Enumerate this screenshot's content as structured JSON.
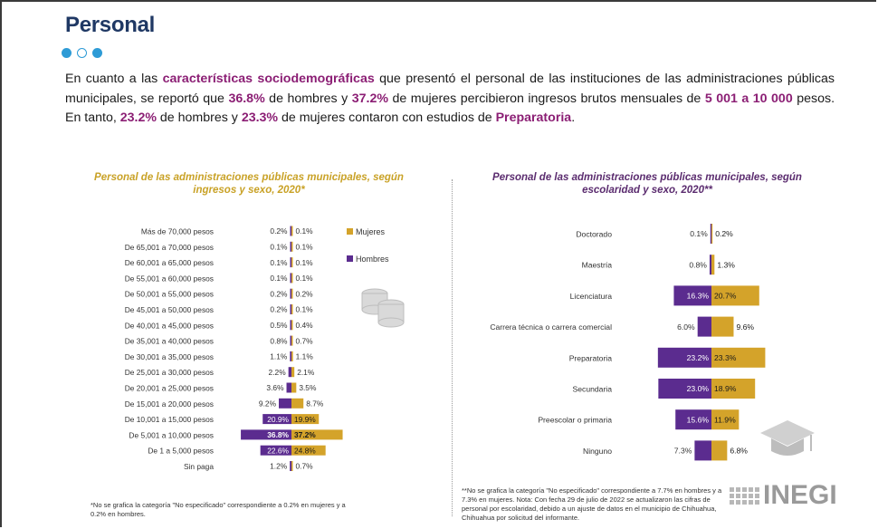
{
  "page": {
    "title": "Personal",
    "intro": [
      {
        "t": "En cuanto a las ",
        "h": false
      },
      {
        "t": "características sociodemográficas",
        "h": true
      },
      {
        "t": " que presentó el personal de las instituciones de las administraciones públicas municipales, se reportó que ",
        "h": false
      },
      {
        "t": "36.8%",
        "h": true
      },
      {
        "t": " de hombres y ",
        "h": false
      },
      {
        "t": "37.2%",
        "h": true
      },
      {
        "t": " de mujeres percibieron ingresos brutos mensuales de ",
        "h": false
      },
      {
        "t": "5 001 a 10 000",
        "h": true
      },
      {
        "t": " pesos. En tanto, ",
        "h": false
      },
      {
        "t": "23.2%",
        "h": true
      },
      {
        "t": " de hombres y ",
        "h": false
      },
      {
        "t": "23.3%",
        "h": true
      },
      {
        "t": " de mujeres contaron con estudios de ",
        "h": false
      },
      {
        "t": "Preparatoria",
        "h": true
      },
      {
        "t": ".",
        "h": false
      }
    ],
    "footnote_left": "*No se grafica la categoría \"No especificado\" correspondiente a 0.2% en mujeres y a 0.2% en hombres.",
    "footnote_right": "**No se grafica la categoría \"No especificado\" correspondiente a 7.7% en hombres y a 7.3% en mujeres. Nota: Con fecha 29 de julio de 2022 se actualizaron las cifras de personal por escolaridad, debido a un ajuste de datos en el municipio de Chihuahua, Chihuahua por solicitud del informante.",
    "logo_text": "INEGI",
    "icons": {
      "coins": "coins-icon",
      "cap": "graduation-cap-icon"
    }
  },
  "colors": {
    "mujeres": "#d4a32a",
    "hombres": "#5b2c8f",
    "title_blue": "#1f3864",
    "highlight": "#8b1e74",
    "dots": "#2e9bd6"
  },
  "chart_data": [
    {
      "type": "bar",
      "orientation": "horizontal-pyramid",
      "title": "Personal de las administraciones públicas municipales, según ingresos y sexo, 2020*",
      "categories": [
        "Más de 70,000 pesos",
        "De 65,001 a 70,000 pesos",
        "De 60,001 a 65,000 pesos",
        "De 55,001 a 60,000 pesos",
        "De 50,001 a 55,000 pesos",
        "De 45,001 a 50,000 pesos",
        "De 40,001 a 45,000 pesos",
        "De 35,001 a 40,000 pesos",
        "De 30,001 a 35,000 pesos",
        "De 25,001 a 30,000 pesos",
        "De 20,001 a 25,000 pesos",
        "De 15,001 a 20,000 pesos",
        "De 10,001 a 15,000 pesos",
        "De 5,001 a 10,000 pesos",
        "De 1 a 5,000 pesos",
        "Sin paga"
      ],
      "series": [
        {
          "name": "Hombres",
          "values": [
            0.2,
            0.1,
            0.1,
            0.1,
            0.2,
            0.2,
            0.5,
            0.8,
            1.1,
            2.2,
            3.6,
            9.2,
            20.9,
            36.8,
            22.6,
            1.2
          ]
        },
        {
          "name": "Mujeres",
          "values": [
            0.1,
            0.1,
            0.1,
            0.1,
            0.2,
            0.1,
            0.4,
            0.7,
            1.1,
            2.1,
            3.5,
            8.7,
            19.9,
            37.2,
            24.8,
            0.7
          ]
        }
      ],
      "legend": [
        "Mujeres",
        "Hombres"
      ],
      "legend_position": "right",
      "unit": "%"
    },
    {
      "type": "bar",
      "orientation": "horizontal-pyramid",
      "title": "Personal de las administraciones públicas municipales, según escolaridad y sexo, 2020**",
      "categories": [
        "Doctorado",
        "Maestría",
        "Licenciatura",
        "Carrera técnica o carrera comercial",
        "Preparatoria",
        "Secundaria",
        "Preescolar o primaria",
        "Ninguno"
      ],
      "series": [
        {
          "name": "Hombres",
          "values": [
            0.1,
            0.8,
            16.3,
            6.0,
            23.2,
            23.0,
            15.6,
            7.3
          ]
        },
        {
          "name": "Mujeres",
          "values": [
            0.2,
            1.3,
            20.7,
            9.6,
            23.3,
            18.9,
            11.9,
            6.8
          ]
        }
      ],
      "unit": "%"
    }
  ]
}
